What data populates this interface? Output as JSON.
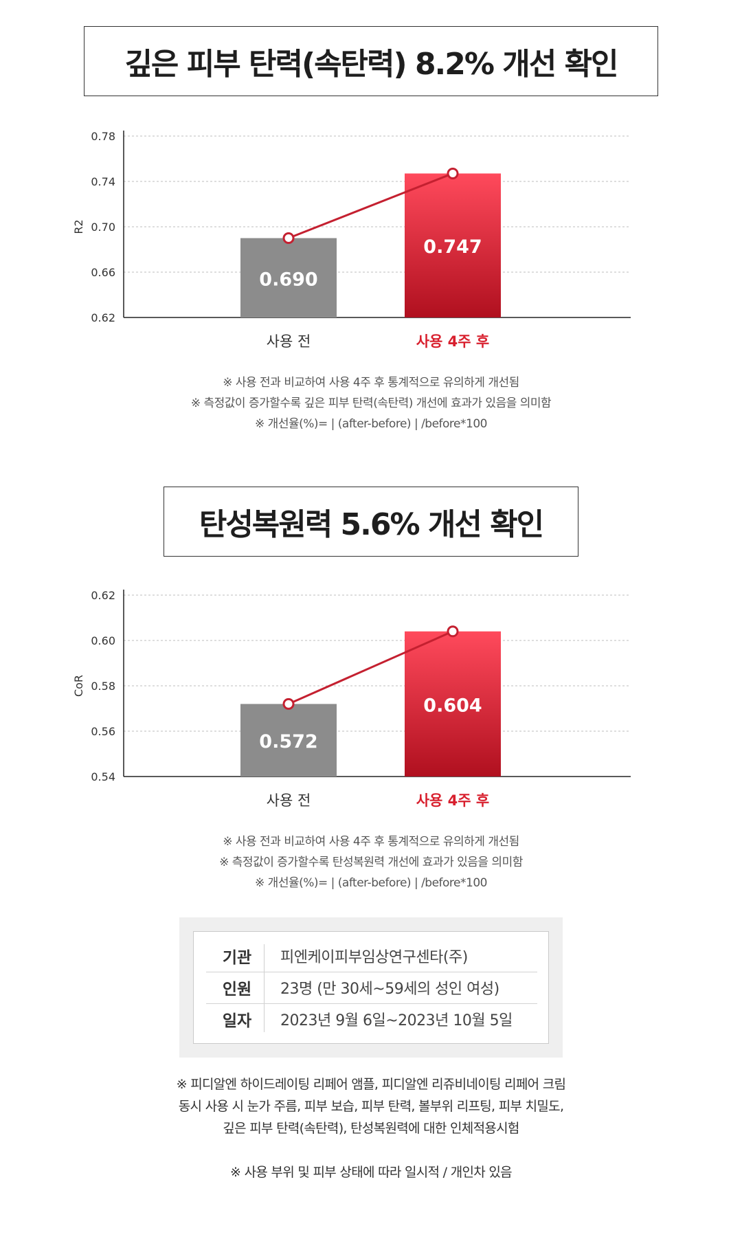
{
  "chart_data": [
    {
      "type": "bar",
      "title": "깊은 피부 탄력(속탄력) 8.2% 개선 확인",
      "ylabel": "R2",
      "ylim": [
        0.62,
        0.78
      ],
      "yticks": [
        "0.78",
        "0.74",
        "0.70",
        "0.66",
        "0.62"
      ],
      "ytick_values": [
        0.78,
        0.74,
        0.7,
        0.66,
        0.62
      ],
      "categories": [
        "사용 전",
        "사용 4주 후"
      ],
      "values": [
        0.69,
        0.747
      ],
      "value_labels": [
        "0.690",
        "0.747"
      ],
      "grid": true,
      "colors": {
        "before": "#8c8c8c",
        "after_top": "#ff4a5c",
        "after_bottom": "#b0101f",
        "line": "#c42030",
        "highlight_text": "#d8202e"
      }
    },
    {
      "type": "bar",
      "title": "탄성복원력 5.6% 개선 확인",
      "ylabel": "CoR",
      "ylim": [
        0.54,
        0.62
      ],
      "yticks": [
        "0.62",
        "0.60",
        "0.58",
        "0.56",
        "0.54"
      ],
      "ytick_values": [
        0.62,
        0.6,
        0.58,
        0.56,
        0.54
      ],
      "categories": [
        "사용 전",
        "사용 4주 후"
      ],
      "values": [
        0.572,
        0.604
      ],
      "value_labels": [
        "0.572",
        "0.604"
      ],
      "grid": true,
      "colors": {
        "before": "#8c8c8c",
        "after_top": "#ff4a5c",
        "after_bottom": "#b0101f",
        "line": "#c42030",
        "highlight_text": "#d8202e"
      }
    }
  ],
  "notes1": [
    "※ 사용 전과 비교하여 사용 4주 후 통계적으로 유의하게 개선됨",
    "※ 측정값이 증가할수록 깊은 피부 탄력(속탄력) 개선에 효과가 있음을 의미함",
    "※ 개선율(%)= | (after-before) | /before*100"
  ],
  "notes2": [
    "※ 사용 전과 비교하여 사용 4주 후 통계적으로 유의하게 개선됨",
    "※ 측정값이 증가할수록 탄성복원력 개선에 효과가 있음을 의미함",
    "※ 개선율(%)= | (after-before) | /before*100"
  ],
  "info": [
    {
      "label": "기관",
      "value": "피엔케이피부임상연구센타(주)"
    },
    {
      "label": "인원",
      "value": "23명 (만 30세~59세의 성인 여성)"
    },
    {
      "label": "일자",
      "value": "2023년 9월 6일~2023년 10월 5일"
    }
  ],
  "footer": [
    "※ 피디알엔 하이드레이팅 리페어 앰플, 피디알엔 리쥬비네이팅 리페어 크림",
    "동시 사용 시 눈가 주름, 피부 보습, 피부 탄력, 볼부위 리프팅, 피부 치밀도,",
    "깊은 피부 탄력(속탄력), 탄성복원력에 대한 인체적용시험",
    "",
    "※ 사용 부위 및 피부 상태에 따라 일시적 / 개인차 있음"
  ]
}
